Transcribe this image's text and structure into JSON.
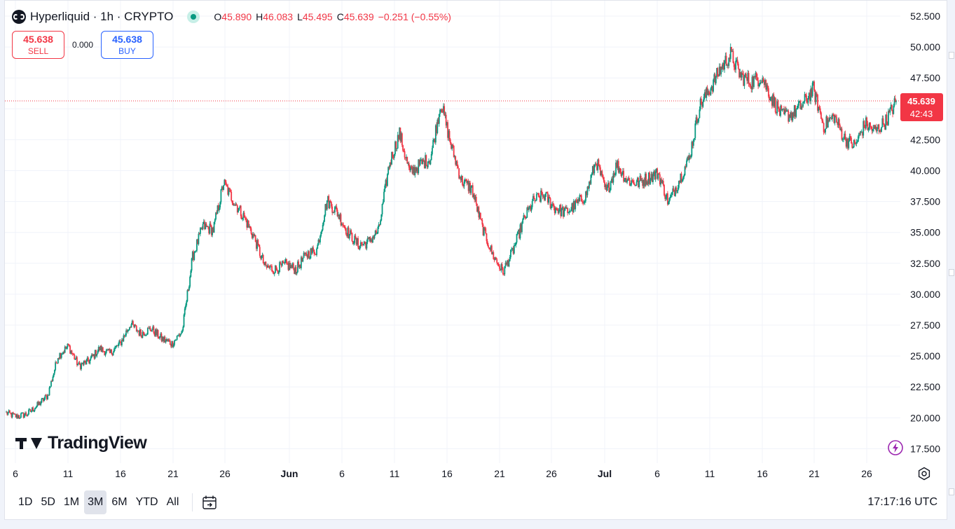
{
  "symbol": {
    "title": "Hyperliquid · 1h · CRYPTO",
    "ohlc": {
      "o_label": "O",
      "o": "45.890",
      "h_label": "H",
      "h": "46.083",
      "l_label": "L",
      "l": "45.495",
      "c_label": "C",
      "c": "45.639",
      "change": "−0.251 (−0.55%)"
    }
  },
  "trade": {
    "sell_price": "45.638",
    "sell_label": "SELL",
    "spread": "0.000",
    "buy_price": "45.638",
    "buy_label": "BUY"
  },
  "price_axis": {
    "labels": [
      "52.500",
      "50.000",
      "47.500",
      "45.000",
      "42.500",
      "40.000",
      "37.500",
      "35.000",
      "32.500",
      "30.000",
      "27.500",
      "25.000",
      "22.500",
      "20.000",
      "17.500"
    ],
    "current_price": "45.639",
    "countdown": "42:43"
  },
  "time_axis": {
    "labels": [
      "6",
      "11",
      "16",
      "21",
      "26",
      "Jun",
      "6",
      "11",
      "16",
      "21",
      "26",
      "Jul",
      "6",
      "11",
      "16",
      "21",
      "26"
    ]
  },
  "branding": "TradingView",
  "bottom_bar": {
    "ranges": [
      "1D",
      "5D",
      "1M",
      "3M",
      "6M",
      "YTD",
      "All"
    ],
    "active_range": "3M",
    "clock": "17:17:16 UTC"
  },
  "colors": {
    "up": "#089981",
    "down": "#f23645",
    "text": "#131722",
    "grid": "#f0f3fa",
    "last_price": "#f23645"
  },
  "icons": {
    "logo": "hyperliquid-logo-icon",
    "status": "market-open-dot-icon",
    "goto_date": "calendar-arrow-icon",
    "settings": "gear-icon",
    "lightning": "lightning-icon"
  },
  "chart_data": {
    "type": "candlestick",
    "timeframe": "1h",
    "y_range": [
      16.25,
      53.75
    ],
    "last_price": 45.639,
    "anchors": [
      {
        "date": "2025-05-05",
        "value": 20.4
      },
      {
        "date": "2025-05-06",
        "value": 20.1
      },
      {
        "date": "2025-05-07",
        "value": 20.3
      },
      {
        "date": "2025-05-08",
        "value": 21.0
      },
      {
        "date": "2025-05-09",
        "value": 21.8
      },
      {
        "date": "2025-05-10",
        "value": 25.0
      },
      {
        "date": "2025-05-11",
        "value": 25.8
      },
      {
        "date": "2025-05-12",
        "value": 24.2
      },
      {
        "date": "2025-05-13",
        "value": 24.6
      },
      {
        "date": "2025-05-14",
        "value": 25.6
      },
      {
        "date": "2025-05-15",
        "value": 25.2
      },
      {
        "date": "2025-05-16",
        "value": 26.0
      },
      {
        "date": "2025-05-17",
        "value": 27.6
      },
      {
        "date": "2025-05-18",
        "value": 26.8
      },
      {
        "date": "2025-05-19",
        "value": 27.2
      },
      {
        "date": "2025-05-20",
        "value": 26.4
      },
      {
        "date": "2025-05-21",
        "value": 26.0
      },
      {
        "date": "2025-05-22",
        "value": 27.0
      },
      {
        "date": "2025-05-23",
        "value": 33.0
      },
      {
        "date": "2025-05-24",
        "value": 35.5
      },
      {
        "date": "2025-05-25",
        "value": 35.2
      },
      {
        "date": "2025-05-26",
        "value": 39.0
      },
      {
        "date": "2025-05-27",
        "value": 37.5
      },
      {
        "date": "2025-05-28",
        "value": 36.2
      },
      {
        "date": "2025-05-29",
        "value": 34.5
      },
      {
        "date": "2025-05-30",
        "value": 32.2
      },
      {
        "date": "2025-05-31",
        "value": 32.0
      },
      {
        "date": "2025-06-01",
        "value": 32.4
      },
      {
        "date": "2025-06-02",
        "value": 32.0
      },
      {
        "date": "2025-06-03",
        "value": 33.2
      },
      {
        "date": "2025-06-04",
        "value": 33.6
      },
      {
        "date": "2025-06-05",
        "value": 37.6
      },
      {
        "date": "2025-06-06",
        "value": 36.6
      },
      {
        "date": "2025-06-07",
        "value": 35.0
      },
      {
        "date": "2025-06-08",
        "value": 34.0
      },
      {
        "date": "2025-06-09",
        "value": 34.2
      },
      {
        "date": "2025-06-10",
        "value": 35.2
      },
      {
        "date": "2025-06-11",
        "value": 40.5
      },
      {
        "date": "2025-06-12",
        "value": 43.0
      },
      {
        "date": "2025-06-13",
        "value": 39.8
      },
      {
        "date": "2025-06-14",
        "value": 40.5
      },
      {
        "date": "2025-06-15",
        "value": 41.0
      },
      {
        "date": "2025-06-16",
        "value": 45.5
      },
      {
        "date": "2025-06-17",
        "value": 42.0
      },
      {
        "date": "2025-06-18",
        "value": 39.2
      },
      {
        "date": "2025-06-19",
        "value": 38.5
      },
      {
        "date": "2025-06-20",
        "value": 35.4
      },
      {
        "date": "2025-06-21",
        "value": 33.2
      },
      {
        "date": "2025-06-22",
        "value": 31.8
      },
      {
        "date": "2025-06-23",
        "value": 33.6
      },
      {
        "date": "2025-06-24",
        "value": 36.0
      },
      {
        "date": "2025-06-25",
        "value": 37.6
      },
      {
        "date": "2025-06-26",
        "value": 38.0
      },
      {
        "date": "2025-06-27",
        "value": 37.0
      },
      {
        "date": "2025-06-28",
        "value": 36.6
      },
      {
        "date": "2025-06-29",
        "value": 37.2
      },
      {
        "date": "2025-06-30",
        "value": 38.0
      },
      {
        "date": "2025-07-01",
        "value": 40.8
      },
      {
        "date": "2025-07-02",
        "value": 38.2
      },
      {
        "date": "2025-07-03",
        "value": 40.5
      },
      {
        "date": "2025-07-04",
        "value": 39.2
      },
      {
        "date": "2025-07-05",
        "value": 39.0
      },
      {
        "date": "2025-07-06",
        "value": 39.4
      },
      {
        "date": "2025-07-07",
        "value": 39.8
      },
      {
        "date": "2025-07-08",
        "value": 37.4
      },
      {
        "date": "2025-07-09",
        "value": 39.2
      },
      {
        "date": "2025-07-10",
        "value": 41.0
      },
      {
        "date": "2025-07-11",
        "value": 45.2
      },
      {
        "date": "2025-07-12",
        "value": 46.6
      },
      {
        "date": "2025-07-13",
        "value": 48.2
      },
      {
        "date": "2025-07-14",
        "value": 49.4
      },
      {
        "date": "2025-07-15",
        "value": 47.6
      },
      {
        "date": "2025-07-16",
        "value": 47.2
      },
      {
        "date": "2025-07-17",
        "value": 47.6
      },
      {
        "date": "2025-07-18",
        "value": 45.8
      },
      {
        "date": "2025-07-19",
        "value": 44.4
      },
      {
        "date": "2025-07-20",
        "value": 44.6
      },
      {
        "date": "2025-07-21",
        "value": 45.4
      },
      {
        "date": "2025-07-22",
        "value": 46.6
      },
      {
        "date": "2025-07-23",
        "value": 43.6
      },
      {
        "date": "2025-07-24",
        "value": 44.4
      },
      {
        "date": "2025-07-25",
        "value": 42.6
      },
      {
        "date": "2025-07-26",
        "value": 42.0
      },
      {
        "date": "2025-07-27",
        "value": 43.8
      },
      {
        "date": "2025-07-28",
        "value": 43.2
      },
      {
        "date": "2025-07-29",
        "value": 44.0
      },
      {
        "date": "2025-07-29",
        "value": 45.6
      }
    ]
  }
}
